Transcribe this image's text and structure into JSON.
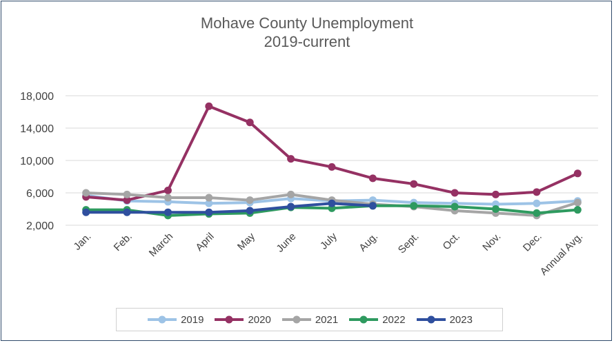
{
  "chart_data": {
    "type": "line",
    "title": "Mohave County Unemployment",
    "subtitle": "2019-current",
    "xlabel": "",
    "ylabel": "",
    "categories": [
      "Jan.",
      "Feb.",
      "March",
      "April",
      "May",
      "June",
      "July",
      "Aug.",
      "Sept.",
      "Oct.",
      "Nov.",
      "Dec.",
      "Annual Avg."
    ],
    "ylim": [
      2000,
      18000
    ],
    "yticks": [
      2000,
      6000,
      10000,
      14000,
      18000
    ],
    "ytick_labels": [
      "2,000",
      "6,000",
      "10,000",
      "14,000",
      "18,000"
    ],
    "grid": true,
    "legend_position": "bottom",
    "series": [
      {
        "name": "2019",
        "color": "#9dc3e6",
        "values": [
          5700,
          5000,
          4900,
          4700,
          4800,
          5300,
          5000,
          5100,
          4800,
          4700,
          4600,
          4700,
          5000
        ]
      },
      {
        "name": "2020",
        "color": "#953163",
        "values": [
          5500,
          5100,
          6300,
          16700,
          14700,
          10200,
          9200,
          7800,
          7100,
          6000,
          5800,
          6100,
          8400
        ]
      },
      {
        "name": "2021",
        "color": "#a5a5a5",
        "values": [
          6000,
          5800,
          5400,
          5400,
          5100,
          5800,
          5100,
          4600,
          4300,
          3800,
          3500,
          3200,
          4800
        ]
      },
      {
        "name": "2022",
        "color": "#2e9a5f",
        "values": [
          3900,
          3900,
          3200,
          3400,
          3500,
          4200,
          4100,
          4400,
          4400,
          4300,
          4000,
          3500,
          3900
        ]
      },
      {
        "name": "2023",
        "color": "#2f4f9e",
        "values": [
          3600,
          3600,
          3600,
          3600,
          3800,
          4300,
          4700,
          4400,
          null,
          null,
          null,
          null,
          null
        ]
      }
    ]
  }
}
